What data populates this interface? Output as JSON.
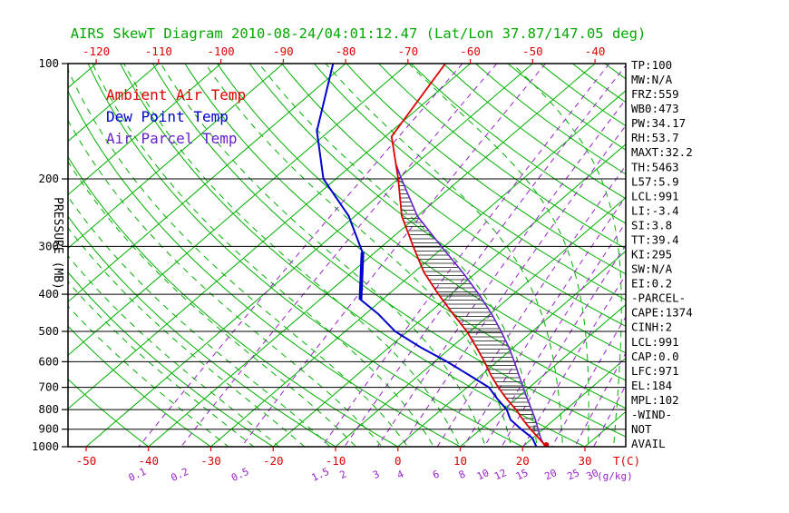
{
  "title": "AIRS SkewT Diagram 2010-08-24/04:01:12.47 (Lat/Lon 37.87/147.05 deg)",
  "legend": [
    {
      "label": "Ambient Air Temp",
      "color": "#dd0000"
    },
    {
      "label": "Dew Point Temp",
      "color": "#0000cc"
    },
    {
      "label": "Air Parcel Temp",
      "color": "#6622cc"
    }
  ],
  "axes": {
    "pressure_label": "PRESSURE (MB)",
    "pressure_ticks": [
      100,
      200,
      300,
      400,
      500,
      600,
      700,
      800,
      900,
      1000
    ],
    "top_temp_ticks": [
      -120,
      -110,
      -100,
      -90,
      -80,
      -70,
      -60,
      -50,
      -40
    ],
    "bottom_temp_ticks": [
      -50,
      -40,
      -30,
      -20,
      -10,
      0,
      10,
      20,
      30
    ],
    "temp_unit_label": "T(C)",
    "mixing_ratio_ticks": [
      0.1,
      0.2,
      0.5,
      1.5,
      2,
      3,
      4,
      6,
      8,
      10,
      12,
      15,
      20,
      25,
      30
    ],
    "mixing_ratio_unit_label": "(g/kg)"
  },
  "indices": [
    "TP:100",
    "MW:N/A",
    "FRZ:559",
    "WB0:473",
    "PW:34.17",
    "RH:53.7",
    "MAXT:32.2",
    "TH:5463",
    "L57:5.9",
    "LCL:991",
    "LI:-3.4",
    "SI:3.8",
    "TT:39.4",
    "KI:295",
    "SW:N/A",
    "EI:0.2",
    "-PARCEL-",
    "CAPE:1374",
    "CINH:2",
    "LCL:991",
    "CAP:0.0",
    "LFC:971",
    "EL:184",
    "MPL:102",
    "-WIND-",
    "NOT",
    "AVAIL"
  ],
  "colors": {
    "background": "#ffffff",
    "grid_green": "#00b000",
    "title_green": "#00a800",
    "mixing_purple": "#9920cc",
    "ambient": "#dd0000",
    "dew": "#0000cc",
    "parcel": "#6622cc",
    "hatch": "#333333",
    "axis_black": "#000000"
  },
  "chart_data": {
    "type": "line",
    "title": "AIRS SkewT Diagram 2010-08-24/04:01:12.47 (Lat/Lon 37.87/147.05 deg)",
    "projection": "skew-t log-p",
    "pressure_axis": {
      "min": 100,
      "max": 1000,
      "scale": "log",
      "unit": "mb"
    },
    "temp_axis_at_surface": {
      "min": -50,
      "max": 30,
      "unit": "C"
    },
    "temp_axis_at_top": {
      "min": -120,
      "max": -40,
      "unit": "C"
    },
    "grid": {
      "isotherms": {
        "min": -120,
        "max": 40,
        "step": 10
      },
      "dry_adiabats": {
        "min": -40,
        "max": 220,
        "step": 10
      },
      "moist_adiabats": {
        "min": -24,
        "max": 40,
        "step": 4
      }
    },
    "series": [
      {
        "name": "Ambient Air Temp",
        "color": "#dd0000",
        "points": [
          [
            1013,
            24.5
          ],
          [
            1000,
            23.8
          ],
          [
            950,
            21
          ],
          [
            900,
            18
          ],
          [
            850,
            15
          ],
          [
            800,
            12
          ],
          [
            750,
            8.5
          ],
          [
            700,
            5
          ],
          [
            650,
            1.5
          ],
          [
            600,
            -2
          ],
          [
            550,
            -6
          ],
          [
            500,
            -10.5
          ],
          [
            450,
            -16
          ],
          [
            400,
            -22
          ],
          [
            350,
            -28.5
          ],
          [
            300,
            -35
          ],
          [
            250,
            -42.5
          ],
          [
            200,
            -50
          ],
          [
            155,
            -59
          ],
          [
            100,
            -64
          ]
        ]
      },
      {
        "name": "Dew Point Temp",
        "color": "#0000cc",
        "points": [
          [
            1013,
            22.5
          ],
          [
            1000,
            22.2
          ],
          [
            950,
            20
          ],
          [
            900,
            16.5
          ],
          [
            850,
            13
          ],
          [
            800,
            10.5
          ],
          [
            750,
            7
          ],
          [
            700,
            3.5
          ],
          [
            650,
            -2
          ],
          [
            600,
            -8
          ],
          [
            550,
            -15
          ],
          [
            500,
            -22
          ],
          [
            450,
            -28
          ],
          [
            413,
            -33.5
          ],
          [
            311,
            -42
          ],
          [
            250,
            -51
          ],
          [
            200,
            -62
          ],
          [
            150,
            -72
          ],
          [
            100,
            -82
          ]
        ]
      },
      {
        "name": "Air Parcel Temp",
        "color": "#6622cc",
        "points": [
          [
            1013,
            24.5
          ],
          [
            991,
            23.2
          ],
          [
            950,
            21.3
          ],
          [
            900,
            19.2
          ],
          [
            850,
            17
          ],
          [
            800,
            14.5
          ],
          [
            750,
            11.8
          ],
          [
            700,
            9
          ],
          [
            650,
            6
          ],
          [
            600,
            2.8
          ],
          [
            550,
            -0.8
          ],
          [
            500,
            -5
          ],
          [
            450,
            -9.8
          ],
          [
            400,
            -15.5
          ],
          [
            350,
            -22.3
          ],
          [
            300,
            -30.5
          ],
          [
            250,
            -40
          ],
          [
            200,
            -49.5
          ],
          [
            184,
            -52.9
          ]
        ]
      }
    ],
    "dew_bold_segment": [
      [
        413,
        -33.5
      ],
      [
        311,
        -42
      ]
    ],
    "cape_region": {
      "lfc_mb": 971,
      "el_mb": 184,
      "cape_jkg": 1374,
      "hatch": "horizontal-lines"
    }
  }
}
